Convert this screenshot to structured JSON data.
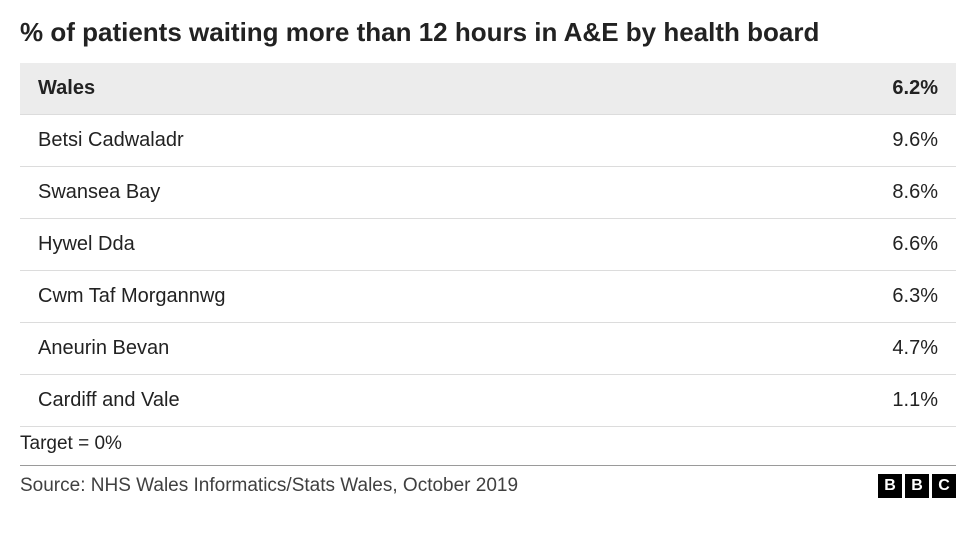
{
  "title": "% of patients waiting more than 12 hours in A&E by health board",
  "table": {
    "header": {
      "label": "Wales",
      "value": "6.2%"
    },
    "rows": [
      {
        "label": "Betsi Cadwaladr",
        "value": "9.6%"
      },
      {
        "label": "Swansea Bay",
        "value": "8.6%"
      },
      {
        "label": "Hywel Dda",
        "value": "6.6%"
      },
      {
        "label": "Cwm Taf Morgannwg",
        "value": "6.3%"
      },
      {
        "label": "Aneurin Bevan",
        "value": "4.7%"
      },
      {
        "label": "Cardiff and Vale",
        "value": "1.1%"
      }
    ],
    "header_bg": "#ececec",
    "row_border": "#dcdcdc",
    "label_fontsize": 20,
    "header_fontweight": 700
  },
  "note": "Target = 0%",
  "source": "Source: NHS Wales Informatics/Stats Wales, October 2019",
  "logo_letters": [
    "B",
    "B",
    "C"
  ],
  "colors": {
    "text": "#222222",
    "background": "#ffffff",
    "footer_rule": "#9a9a9a",
    "logo_bg": "#000000",
    "logo_fg": "#ffffff"
  },
  "title_fontsize": 26
}
